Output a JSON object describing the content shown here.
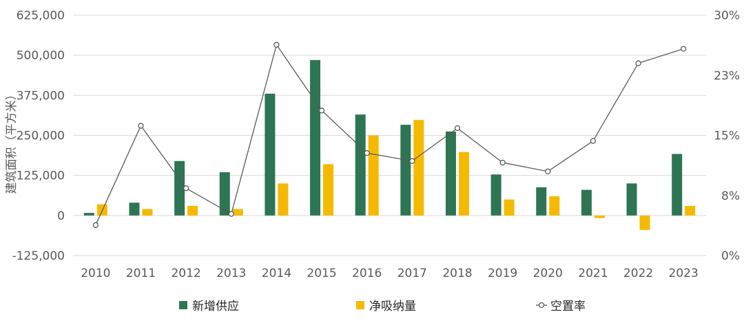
{
  "chart_data": {
    "type": "bar",
    "categories": [
      "2010",
      "2011",
      "2012",
      "2013",
      "2014",
      "2015",
      "2016",
      "2017",
      "2018",
      "2019",
      "2020",
      "2021",
      "2022",
      "2023"
    ],
    "series": [
      {
        "name": "新增供应",
        "type": "bar",
        "axis": "left",
        "color": "#2E7554",
        "values": [
          8000,
          40000,
          170000,
          135000,
          380000,
          485000,
          315000,
          283000,
          262000,
          128000,
          88000,
          80000,
          100000,
          192000
        ]
      },
      {
        "name": "净吸纳量",
        "type": "bar",
        "axis": "left",
        "color": "#F5BA00",
        "values": [
          35000,
          20000,
          30000,
          20000,
          100000,
          160000,
          250000,
          298000,
          198000,
          50000,
          60000,
          -8000,
          -45000,
          30000
        ]
      },
      {
        "name": "空置率",
        "type": "line",
        "axis": "right",
        "color": "#595959",
        "values": [
          3.8,
          16.2,
          8.4,
          5.2,
          26.3,
          18.1,
          12.8,
          11.8,
          15.9,
          11.6,
          10.5,
          14.3,
          24.0,
          25.8
        ]
      }
    ],
    "ylabel": "建筑面积（平方米）",
    "left_axis": {
      "min": -125000,
      "max": 625000,
      "ticks": [
        625000,
        500000,
        375000,
        250000,
        125000,
        0,
        -125000
      ],
      "tick_labels": [
        "625,000",
        "500,000",
        "375,000",
        "250,000",
        "125,000",
        "0",
        "-125,000"
      ]
    },
    "right_axis": {
      "min": 0,
      "max": 30,
      "ticks": [
        30,
        22.5,
        15,
        7.5,
        0
      ],
      "tick_labels": [
        "30%",
        "23%",
        "15%",
        "8%",
        "0%"
      ]
    },
    "grid": true,
    "legend_position": "bottom"
  }
}
